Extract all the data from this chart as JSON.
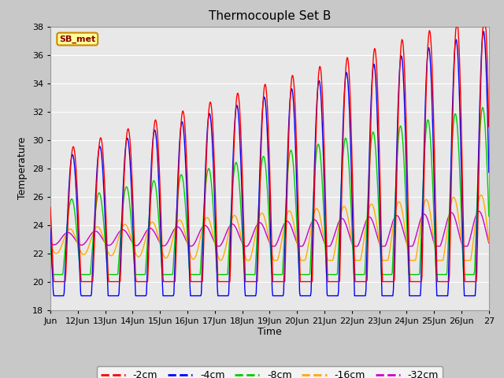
{
  "title": "Thermocouple Set B",
  "xlabel": "Time",
  "ylabel": "Temperature",
  "ylim": [
    18,
    38
  ],
  "yticks": [
    18,
    20,
    22,
    24,
    26,
    28,
    30,
    32,
    34,
    36,
    38
  ],
  "x_labels": [
    "Jun",
    "12Jun",
    "13Jun",
    "14Jun",
    "15Jun",
    "16Jun",
    "17Jun",
    "18Jun",
    "19Jun",
    "20Jun",
    "21Jun",
    "22Jun",
    "23Jun",
    "24Jun",
    "25Jun",
    "26Jun",
    "27"
  ],
  "colors": {
    "-2cm": "#ff0000",
    "-4cm": "#0000ff",
    "-8cm": "#00cc00",
    "-16cm": "#ffaa00",
    "-32cm": "#cc00cc"
  },
  "legend_label": "SB_met",
  "legend_bg": "#ffff99",
  "legend_border": "#cc8800",
  "ax_bg_color": "#e8e8e8",
  "grid_color": "#ffffff",
  "title_fontsize": 11,
  "label_fontsize": 9,
  "tick_fontsize": 8
}
